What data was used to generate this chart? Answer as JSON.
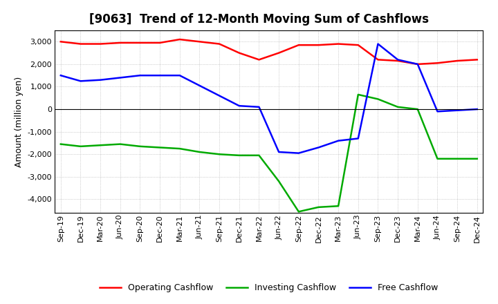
{
  "title": "[9063]  Trend of 12-Month Moving Sum of Cashflows",
  "ylabel": "Amount (million yen)",
  "x_labels": [
    "Sep-19",
    "Dec-19",
    "Mar-20",
    "Jun-20",
    "Sep-20",
    "Dec-20",
    "Mar-21",
    "Jun-21",
    "Sep-21",
    "Dec-21",
    "Mar-22",
    "Jun-22",
    "Sep-22",
    "Dec-22",
    "Mar-23",
    "Jun-23",
    "Sep-23",
    "Dec-23",
    "Mar-24",
    "Jun-24",
    "Sep-24",
    "Dec-24"
  ],
  "operating": [
    3000,
    2900,
    2900,
    2950,
    2950,
    2950,
    3100,
    3000,
    2900,
    2500,
    2200,
    2500,
    2850,
    2850,
    2900,
    2850,
    2200,
    2150,
    2000,
    2050,
    2150,
    2200
  ],
  "investing": [
    -1550,
    -1650,
    -1600,
    -1550,
    -1650,
    -1700,
    -1750,
    -1900,
    -2000,
    -2050,
    -2050,
    -3200,
    -4550,
    -4350,
    -4300,
    650,
    450,
    100,
    0,
    -2200,
    -2200,
    -2200
  ],
  "free": [
    1500,
    1250,
    1300,
    1400,
    1500,
    1500,
    1500,
    1050,
    600,
    150,
    100,
    -1900,
    -1950,
    -1700,
    -1400,
    -1300,
    2900,
    2200,
    2000,
    -100,
    -50,
    0
  ],
  "ylim": [
    -4600,
    3500
  ],
  "yticks": [
    -4000,
    -3000,
    -2000,
    -1000,
    0,
    1000,
    2000,
    3000
  ],
  "operating_color": "#ff0000",
  "investing_color": "#00aa00",
  "free_color": "#0000ff",
  "bg_color": "#ffffff",
  "plot_bg_color": "#ffffff",
  "grid_color": "#aaaaaa",
  "line_width": 1.8,
  "title_fontsize": 12,
  "label_fontsize": 9,
  "tick_fontsize": 8
}
